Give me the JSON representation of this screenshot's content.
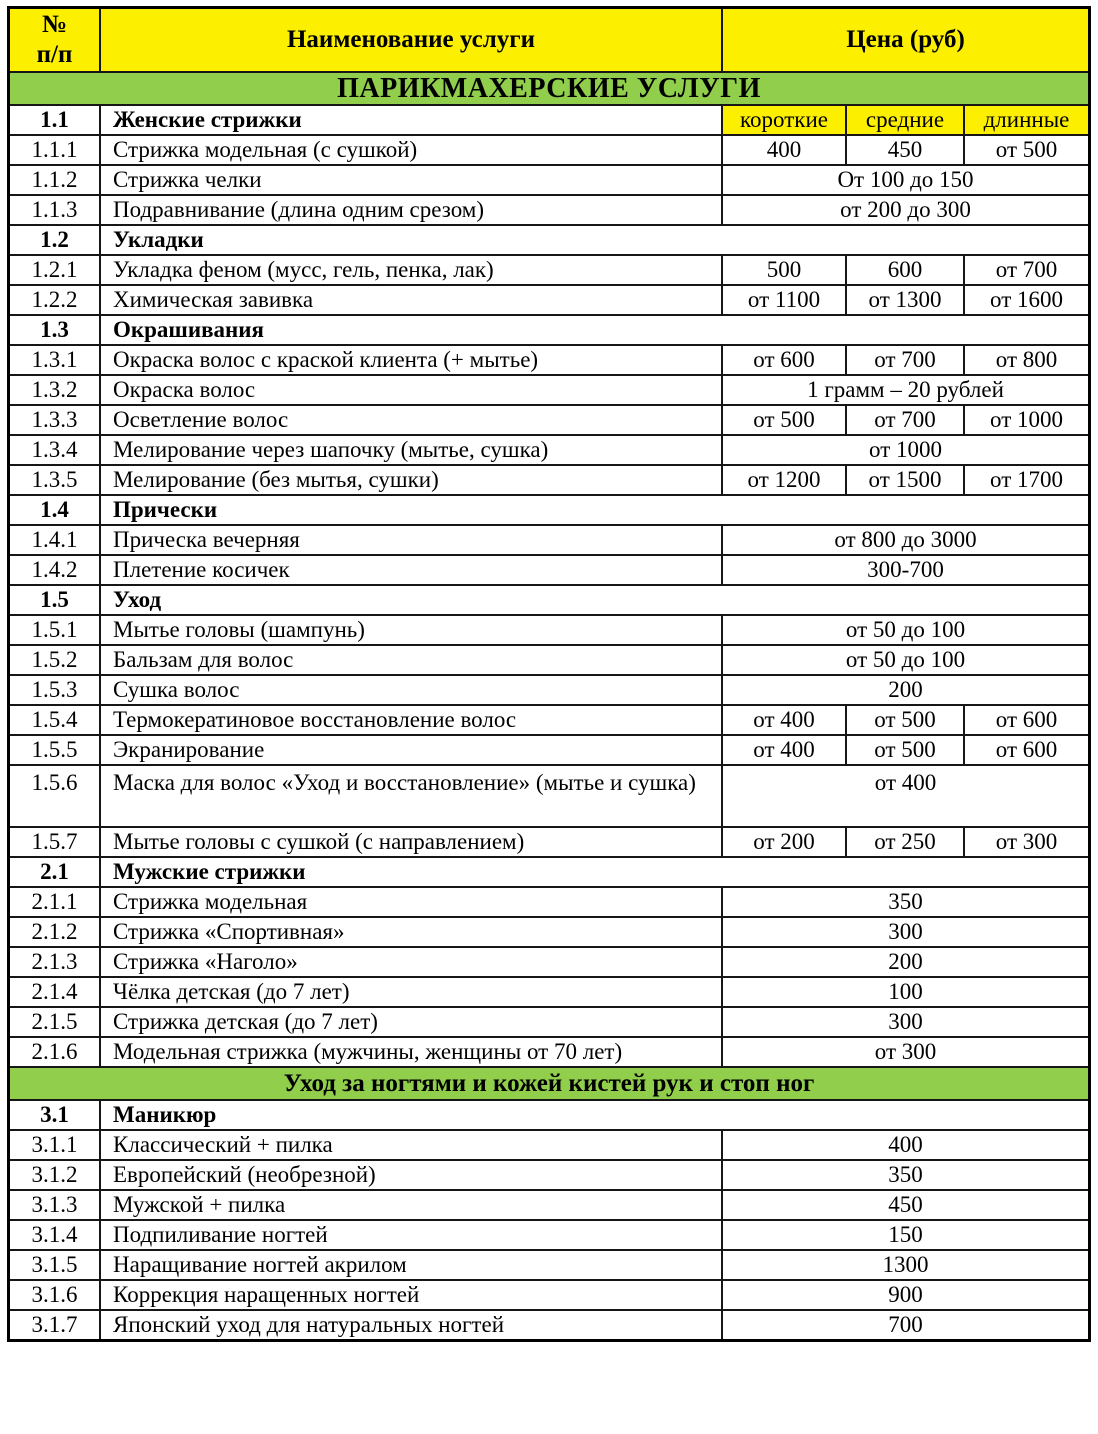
{
  "colors": {
    "yellow": "#fcf000",
    "green": "#90ce4c",
    "border": "#161616",
    "text": "#000000"
  },
  "header": {
    "num_line1": "№",
    "num_line2": "п/п",
    "name": "Наименование услуги",
    "price": "Цена (руб)"
  },
  "rows": [
    {
      "type": "band",
      "text": "ПАРИКМАХЕРСКИЕ УСЛУГИ"
    },
    {
      "type": "group",
      "num": "1.1",
      "name": "Женские стрижки",
      "subheads": [
        "короткие",
        "средние",
        "длинные"
      ]
    },
    {
      "type": "item",
      "num": "1.1.1",
      "name": "Стрижка модельная (с сушкой)",
      "prices": [
        "400",
        "450",
        "от 500"
      ]
    },
    {
      "type": "item",
      "num": "1.1.2",
      "name": "Стрижка челки",
      "price": "От 100 до 150"
    },
    {
      "type": "item",
      "num": "1.1.3",
      "name": "Подравнивание (длина одним срезом)",
      "price": "от 200 до 300"
    },
    {
      "type": "group",
      "num": "1.2",
      "name": "Укладки"
    },
    {
      "type": "item",
      "num": "1.2.1",
      "name": "Укладка феном (мусс, гель, пенка, лак)",
      "prices": [
        "500",
        "600",
        "от 700"
      ]
    },
    {
      "type": "item",
      "num": "1.2.2",
      "name": "Химическая завивка",
      "prices": [
        "от 1100",
        "от 1300",
        "от 1600"
      ]
    },
    {
      "type": "group",
      "num": "1.3",
      "name": "Окрашивания"
    },
    {
      "type": "item",
      "num": "1.3.1",
      "name": "Окраска волос с краской клиента (+ мытье)",
      "prices": [
        "от 600",
        "от 700",
        "от 800"
      ]
    },
    {
      "type": "item",
      "num": "1.3.2",
      "name": "Окраска волос",
      "price": "1 грамм – 20 рублей"
    },
    {
      "type": "item",
      "num": "1.3.3",
      "name": "Осветление волос",
      "prices": [
        "от 500",
        "от 700",
        "от 1000"
      ]
    },
    {
      "type": "item",
      "num": "1.3.4",
      "name": "Мелирование через шапочку (мытье, сушка)",
      "price": "от 1000"
    },
    {
      "type": "item",
      "num": "1.3.5",
      "name": "Мелирование (без мытья, сушки)",
      "prices": [
        "от 1200",
        "от 1500",
        "от 1700"
      ]
    },
    {
      "type": "group",
      "num": "1.4",
      "name": "Прически"
    },
    {
      "type": "item",
      "num": "1.4.1",
      "name": "Прическа вечерняя",
      "price": "от 800 до 3000"
    },
    {
      "type": "item",
      "num": "1.4.2",
      "name": "Плетение косичек",
      "price": "300-700"
    },
    {
      "type": "group",
      "num": "1.5",
      "name": "Уход"
    },
    {
      "type": "item",
      "num": "1.5.1",
      "name": "Мытье головы (шампунь)",
      "price": "от 50 до 100"
    },
    {
      "type": "item",
      "num": "1.5.2",
      "name": "Бальзам для волос",
      "price": "от 50 до 100"
    },
    {
      "type": "item",
      "num": "1.5.3",
      "name": "Сушка волос",
      "price": "200"
    },
    {
      "type": "item",
      "num": "1.5.4",
      "name": "Термокератиновое восстановление волос",
      "prices": [
        "от 400",
        "от 500",
        "от 600"
      ]
    },
    {
      "type": "item",
      "num": "1.5.5",
      "name": "Экранирование",
      "prices": [
        "от 400",
        "от 500",
        "от 600"
      ]
    },
    {
      "type": "item",
      "num": "1.5.6",
      "name": "Маска для волос «Уход и восстановление» (мытье и сушка)",
      "price": "от 400",
      "tall": true
    },
    {
      "type": "item",
      "num": "1.5.7",
      "name": "Мытье головы с сушкой (с направлением)",
      "prices": [
        "от 200",
        "от 250",
        "от 300"
      ]
    },
    {
      "type": "group",
      "num": "2.1",
      "name": "Мужские стрижки"
    },
    {
      "type": "item",
      "num": "2.1.1",
      "name": "Стрижка модельная",
      "price": "350"
    },
    {
      "type": "item",
      "num": "2.1.2",
      "name": "Стрижка «Спортивная»",
      "price": "300"
    },
    {
      "type": "item",
      "num": "2.1.3",
      "name": "Стрижка «Наголо»",
      "price": "200"
    },
    {
      "type": "item",
      "num": "2.1.4",
      "name": "Чёлка детская (до 7 лет)",
      "price": "100"
    },
    {
      "type": "item",
      "num": "2.1.5",
      "name": "Стрижка детская (до 7 лет)",
      "price": "300"
    },
    {
      "type": "item",
      "num": "2.1.6",
      "name": "Модельная стрижка (мужчины, женщины от 70 лет)",
      "price": "от 300"
    },
    {
      "type": "band",
      "text": "Уход за ногтями и кожей кистей рук и стоп ног"
    },
    {
      "type": "group",
      "num": "3.1",
      "name": "Маникюр"
    },
    {
      "type": "item",
      "num": "3.1.1",
      "name": "Классический + пилка",
      "price": "400"
    },
    {
      "type": "item",
      "num": "3.1.2",
      "name": "Европейский (необрезной)",
      "price": "350"
    },
    {
      "type": "item",
      "num": "3.1.3",
      "name": "Мужской + пилка",
      "price": "450"
    },
    {
      "type": "item",
      "num": "3.1.4",
      "name": "Подпиливание ногтей",
      "price": "150"
    },
    {
      "type": "item",
      "num": "3.1.5",
      "name": "Наращивание ногтей акрилом",
      "price": "1300"
    },
    {
      "type": "item",
      "num": "3.1.6",
      "name": "Коррекция наращенных ногтей",
      "price": "900"
    },
    {
      "type": "item",
      "num": "3.1.7",
      "name": "Японский уход для натуральных ногтей",
      "price": "700"
    }
  ]
}
